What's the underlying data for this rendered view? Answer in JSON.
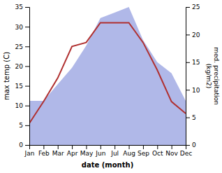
{
  "chart_data": {
    "type": "line",
    "categories": [
      "Jan",
      "Feb",
      "Mar",
      "Apr",
      "May",
      "Jun",
      "Jul",
      "Aug",
      "Sep",
      "Oct",
      "Nov",
      "Dec"
    ],
    "xlabel": "date (month)",
    "ylabel": "max temp (C)",
    "y2label": "med. precipitation\n(kg/m2)",
    "series": [
      {
        "type": "area",
        "axis": "y2",
        "color": "#b0b8e8",
        "values": [
          8,
          8,
          11,
          14,
          18,
          23,
          24,
          25,
          19,
          15,
          13,
          8
        ]
      },
      {
        "type": "line",
        "color": "#b03030",
        "values": [
          5.5,
          11.0,
          17.0,
          25.0,
          26.0,
          31.0,
          31.0,
          31.0,
          26.0,
          19.0,
          11.0,
          8.0
        ]
      }
    ],
    "ylim": [
      0,
      35
    ],
    "yticks": [
      0,
      5,
      10,
      15,
      20,
      25,
      30,
      35
    ],
    "y2lim": [
      0,
      25
    ],
    "y2ticks": [
      0,
      5,
      10,
      15,
      20,
      25
    ],
    "grid": false
  }
}
